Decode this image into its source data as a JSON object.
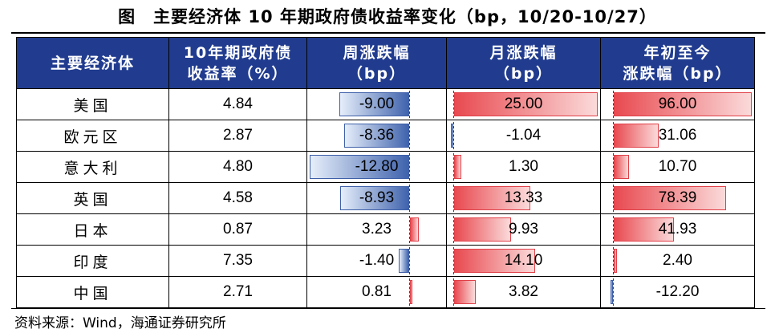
{
  "title": "图　主要经济体 10 年期政府债收益率变化（bp，10/20-10/27）",
  "headers": {
    "country": "主要经济体",
    "yield_line1": "10年期政府债",
    "yield_line2": "收益率（%）",
    "week_line1": "周涨跌幅",
    "week_line2": "（bp）",
    "month_line1": "月涨跌幅",
    "month_line2": "（bp）",
    "ytd_line1": "年初至今",
    "ytd_line2": "涨跌幅（bp）"
  },
  "bar_colors": {
    "positive": "#e84a50",
    "negative": "#3f63ad"
  },
  "rows": [
    {
      "country": "美国",
      "yield": "4.84",
      "week": -9.0,
      "week_text": "-9.00",
      "month": 25.0,
      "month_text": "25.00",
      "ytd": 96.0,
      "ytd_text": "96.00"
    },
    {
      "country": "欧元区",
      "yield": "2.87",
      "week": -8.36,
      "week_text": "-8.36",
      "month": -1.04,
      "month_text": "-1.04",
      "ytd": 31.06,
      "ytd_text": "31.06"
    },
    {
      "country": "意大利",
      "yield": "4.80",
      "week": -12.8,
      "week_text": "-12.80",
      "month": 1.3,
      "month_text": "1.30",
      "ytd": 10.7,
      "ytd_text": "10.70"
    },
    {
      "country": "英国",
      "yield": "4.58",
      "week": -8.93,
      "week_text": "-8.93",
      "month": 13.33,
      "month_text": "13.33",
      "ytd": 78.39,
      "ytd_text": "78.39"
    },
    {
      "country": "日本",
      "yield": "0.87",
      "week": 3.23,
      "week_text": "3.23",
      "month": 9.93,
      "month_text": "9.93",
      "ytd": 41.93,
      "ytd_text": "41.93"
    },
    {
      "country": "印度",
      "yield": "7.35",
      "week": -1.4,
      "week_text": "-1.40",
      "month": 14.1,
      "month_text": "14.10",
      "ytd": 2.4,
      "ytd_text": "2.40"
    },
    {
      "country": "中国",
      "yield": "2.71",
      "week": 0.81,
      "week_text": "0.81",
      "month": 3.82,
      "month_text": "3.82",
      "ytd": -12.2,
      "ytd_text": "-12.20"
    }
  ],
  "source": "资料来源：Wind，海通证券研究所"
}
